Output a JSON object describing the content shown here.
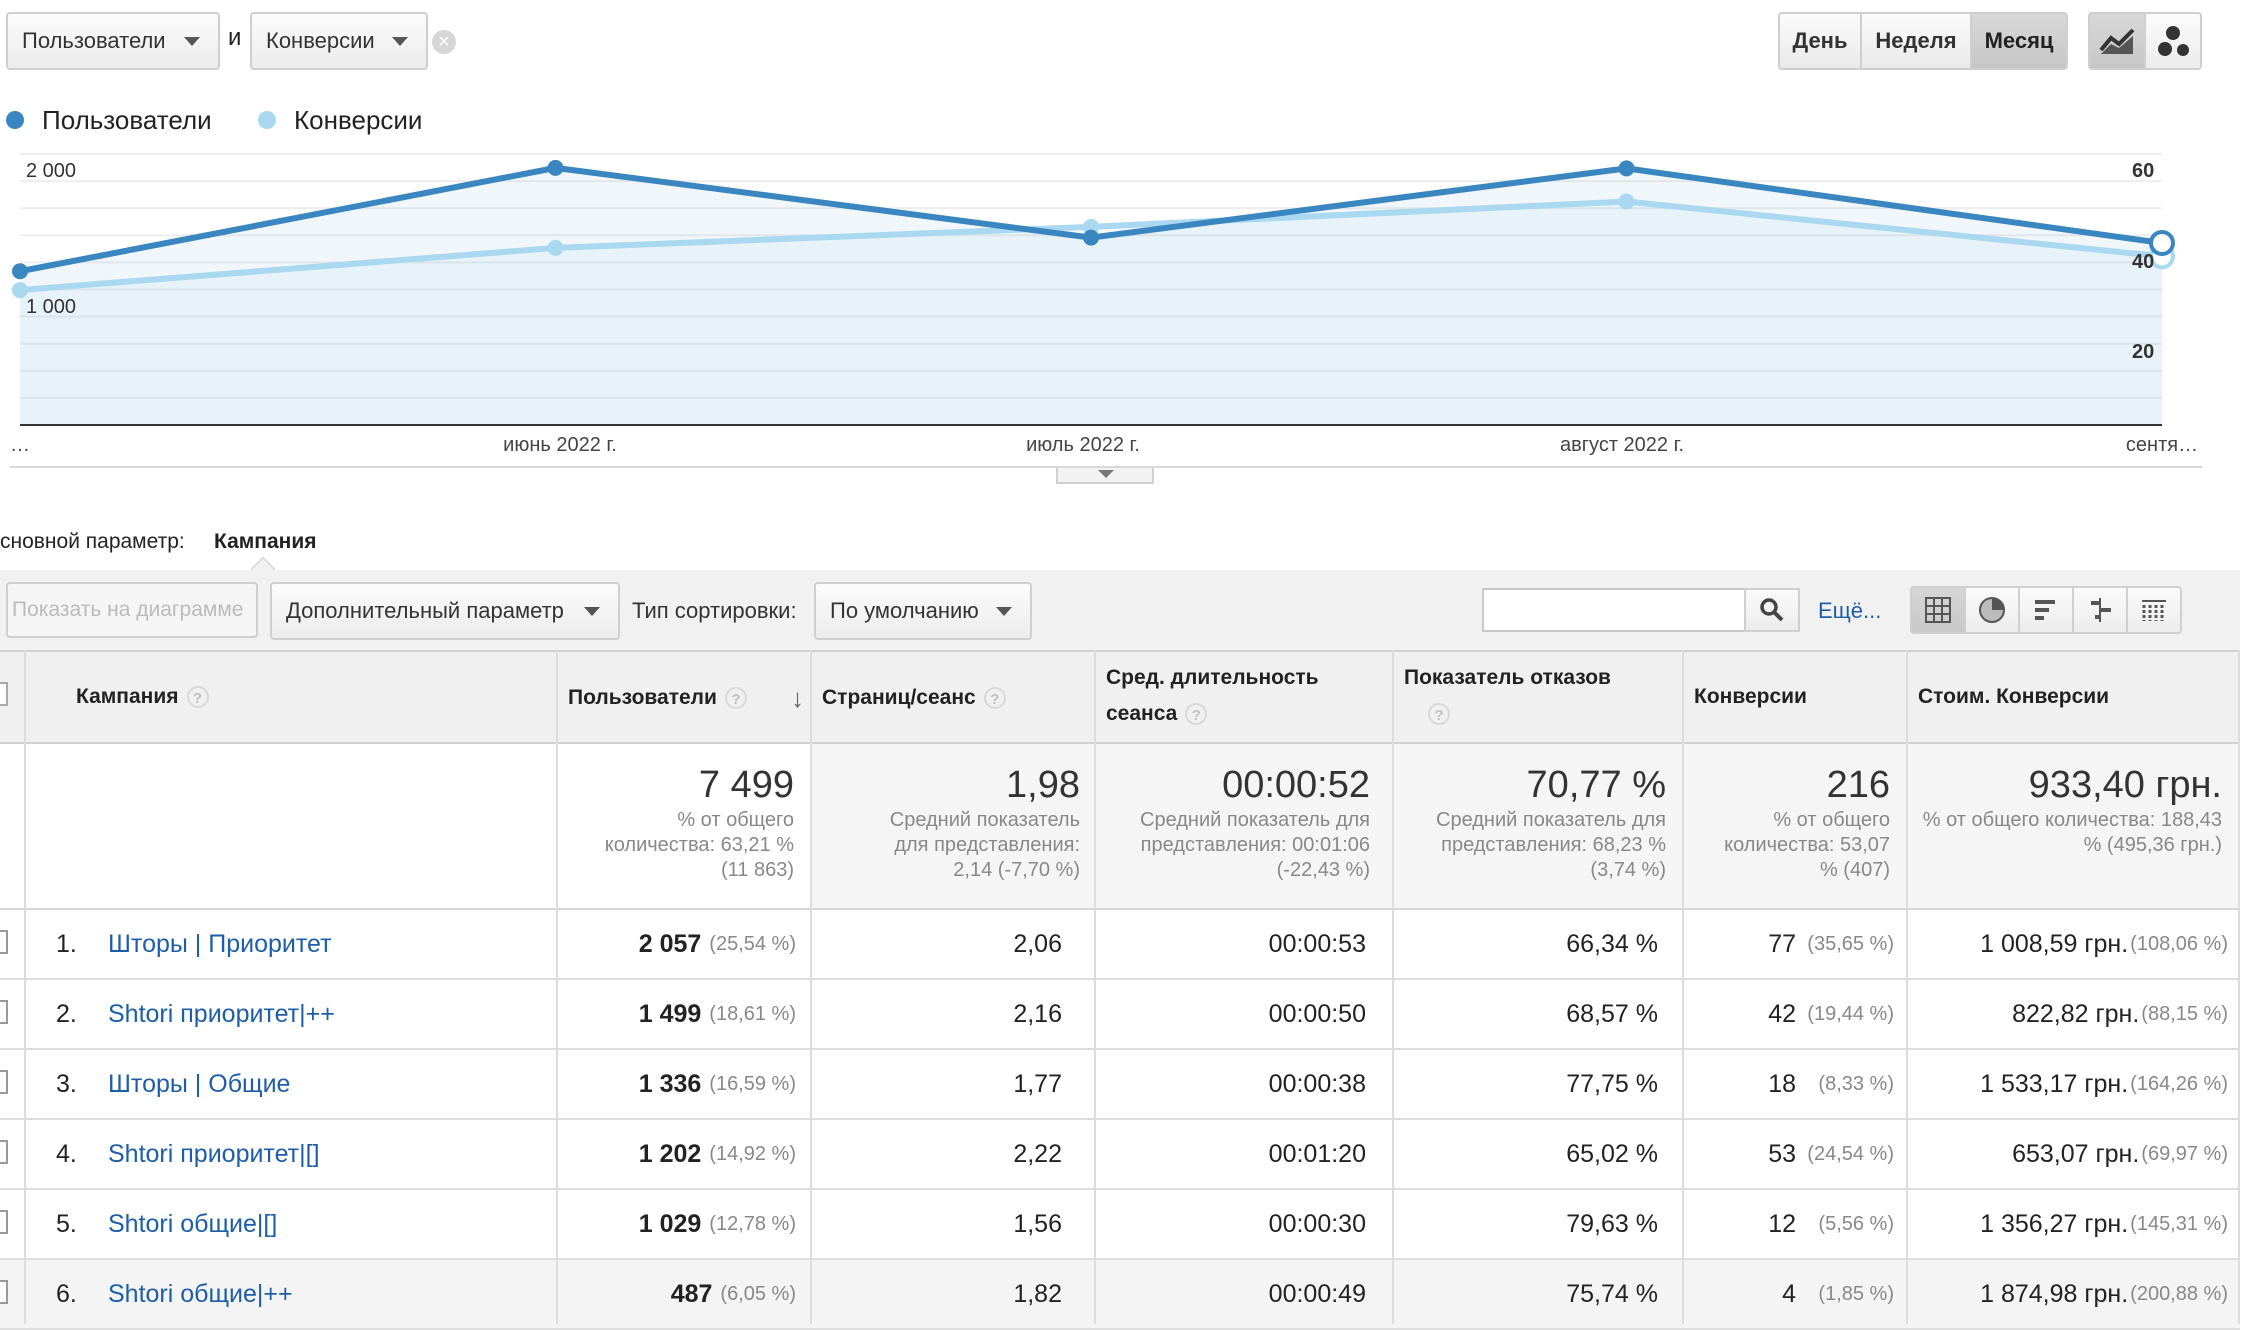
{
  "controls": {
    "metric1": "Пользователи",
    "conjunction": "и",
    "metric2": "Конверсии",
    "periods": [
      "День",
      "Неделя",
      "Месяц"
    ],
    "active_period": "Месяц"
  },
  "legend": {
    "series1": "Пользователи",
    "series2": "Конверсии",
    "series1_color": "#3a86c0",
    "series2_color": "#a9d8f0"
  },
  "chart_data": {
    "type": "line",
    "x": [
      "…",
      "июнь 2022 г.",
      "июль 2022 г.",
      "август 2022 г.",
      "сентя…"
    ],
    "series": [
      {
        "name": "Пользователи",
        "axis": "left",
        "values": [
          1230,
          2057,
          1499,
          2053,
          1456
        ]
      },
      {
        "name": "Конверсии",
        "axis": "right",
        "values": [
          32,
          42,
          47,
          53,
          40
        ]
      }
    ],
    "y_left_ticks": [
      "2 000",
      "1 000"
    ],
    "y_right_ticks": [
      "60",
      "40",
      "20"
    ],
    "ylim_left": [
      0,
      2000
    ],
    "ylim_right": [
      0,
      60
    ],
    "grid": true
  },
  "dimension": {
    "label": "сновной параметр:",
    "value": "Кампания"
  },
  "toolbar": {
    "show_on_chart": "Показать на диаграмме",
    "secondary_dimension": "Дополнительный параметр",
    "sort_label": "Тип сортировки:",
    "sort_value": "По умолчанию",
    "search_value": "",
    "more": "Ещё..."
  },
  "table": {
    "headers": {
      "campaign": "Кампания",
      "users": "Пользователи",
      "pages": "Страниц/сеанс",
      "duration": "Сред. длительность сеанса",
      "bounce": "Показатель отказов",
      "conv": "Конверсии",
      "cost": "Стоим. Конверсии"
    },
    "totals": {
      "users": {
        "value": "7 499",
        "sub": "% от общего количества: 63,21 % (11 863)"
      },
      "pages": {
        "value": "1,98",
        "sub": "Средний показатель для представления: 2,14 (-7,70 %)"
      },
      "duration": {
        "value": "00:00:52",
        "sub": "Средний показатель для представления: 00:01:06 (-22,43 %)"
      },
      "bounce": {
        "value": "70,77 %",
        "sub": "Средний показатель для представления: 68,23 % (3,74 %)"
      },
      "conv": {
        "value": "216",
        "sub": "% от общего количества: 53,07 % (407)"
      },
      "cost": {
        "value": "933,40 грн.",
        "sub": "% от общего количества: 188,43 % (495,36 грн.)"
      }
    },
    "rows": [
      {
        "num": "1.",
        "campaign": "Шторы | Приоритет",
        "users": "2 057",
        "users_pct": "(25,54 %)",
        "pages": "2,06",
        "duration": "00:00:53",
        "bounce": "66,34 %",
        "conv": "77",
        "conv_pct": "(35,65 %)",
        "cost": "1 008,59 грн.",
        "cost_pct": "(108,06 %)"
      },
      {
        "num": "2.",
        "campaign": "Shtori приоритет|++",
        "users": "1 499",
        "users_pct": "(18,61 %)",
        "pages": "2,16",
        "duration": "00:00:50",
        "bounce": "68,57 %",
        "conv": "42",
        "conv_pct": "(19,44 %)",
        "cost": "822,82 грн.",
        "cost_pct": "(88,15 %)"
      },
      {
        "num": "3.",
        "campaign": "Шторы | Общие",
        "users": "1 336",
        "users_pct": "(16,59 %)",
        "pages": "1,77",
        "duration": "00:00:38",
        "bounce": "77,75 %",
        "conv": "18",
        "conv_pct": "(8,33 %)",
        "cost": "1 533,17 грн.",
        "cost_pct": "(164,26 %)"
      },
      {
        "num": "4.",
        "campaign": "Shtori приоритет|[]",
        "users": "1 202",
        "users_pct": "(14,92 %)",
        "pages": "2,22",
        "duration": "00:01:20",
        "bounce": "65,02 %",
        "conv": "53",
        "conv_pct": "(24,54 %)",
        "cost": "653,07 грн.",
        "cost_pct": "(69,97 %)"
      },
      {
        "num": "5.",
        "campaign": "Shtori общие|[]",
        "users": "1 029",
        "users_pct": "(12,78 %)",
        "pages": "1,56",
        "duration": "00:00:30",
        "bounce": "79,63 %",
        "conv": "12",
        "conv_pct": "(5,56 %)",
        "cost": "1 356,27 грн.",
        "cost_pct": "(145,31 %)"
      },
      {
        "num": "6.",
        "campaign": "Shtori общие|++",
        "users": "487",
        "users_pct": "(6,05 %)",
        "pages": "1,82",
        "duration": "00:00:49",
        "bounce": "75,74 %",
        "conv": "4",
        "conv_pct": "(1,85 %)",
        "cost": "1 874,98 грн.",
        "cost_pct": "(200,88 %)"
      }
    ]
  }
}
